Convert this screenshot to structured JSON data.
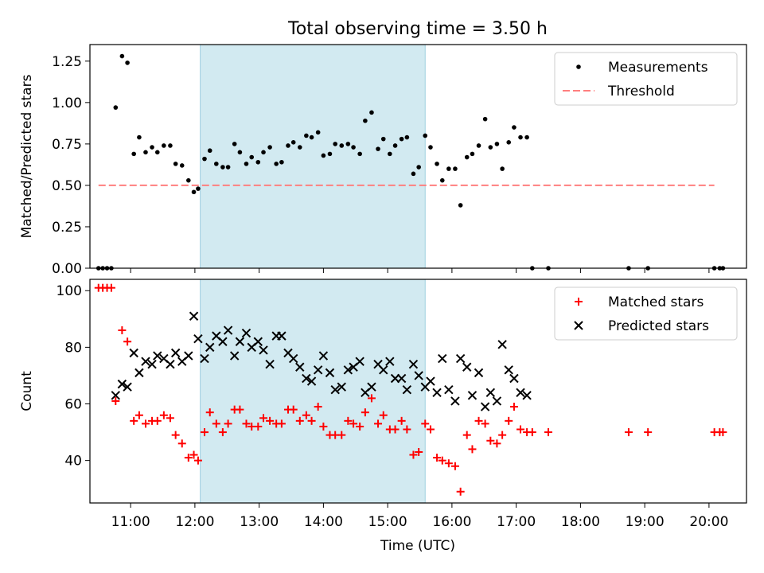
{
  "title": "Total observing time = 3.50 h",
  "colors": {
    "measurement": "#000000",
    "threshold": "#ff7f7f",
    "matched": "#ff0000",
    "predicted": "#000000",
    "span": "#add8e6"
  },
  "chart_data": [
    {
      "type": "scatter",
      "ylabel": "Matched/Predicted stars",
      "xlim": [
        "10:22",
        "20:35"
      ],
      "ylim": [
        0,
        1.35
      ],
      "yticks": [
        "0.00",
        "0.25",
        "0.50",
        "0.75",
        "1.00",
        "1.25"
      ],
      "highlight_span": [
        "12:05",
        "15:35"
      ],
      "legend": {
        "position": "upper-right",
        "entries": [
          "Measurements",
          "Threshold"
        ]
      },
      "threshold": {
        "name": "Threshold",
        "value": 0.5,
        "x_range": [
          "10:30",
          "20:05"
        ]
      },
      "series": [
        {
          "name": "Measurements",
          "marker": "dot",
          "points": [
            [
              "10:30",
              0
            ],
            [
              "10:34",
              0
            ],
            [
              "10:38",
              0
            ],
            [
              "10:42",
              0
            ],
            [
              "10:46",
              0.97
            ],
            [
              "10:52",
              1.28
            ],
            [
              "10:57",
              1.24
            ],
            [
              "11:03",
              0.69
            ],
            [
              "11:08",
              0.79
            ],
            [
              "11:14",
              0.7
            ],
            [
              "11:20",
              0.73
            ],
            [
              "11:25",
              0.7
            ],
            [
              "11:31",
              0.74
            ],
            [
              "11:37",
              0.74
            ],
            [
              "11:42",
              0.63
            ],
            [
              "11:48",
              0.62
            ],
            [
              "11:54",
              0.53
            ],
            [
              "11:59",
              0.46
            ],
            [
              "12:03",
              0.48
            ],
            [
              "12:09",
              0.66
            ],
            [
              "12:14",
              0.71
            ],
            [
              "12:20",
              0.63
            ],
            [
              "12:26",
              0.61
            ],
            [
              "12:31",
              0.61
            ],
            [
              "12:37",
              0.75
            ],
            [
              "12:42",
              0.7
            ],
            [
              "12:48",
              0.63
            ],
            [
              "12:53",
              0.67
            ],
            [
              "12:59",
              0.64
            ],
            [
              "13:04",
              0.7
            ],
            [
              "13:10",
              0.73
            ],
            [
              "13:16",
              0.63
            ],
            [
              "13:21",
              0.64
            ],
            [
              "13:27",
              0.74
            ],
            [
              "13:32",
              0.76
            ],
            [
              "13:38",
              0.73
            ],
            [
              "13:44",
              0.8
            ],
            [
              "13:49",
              0.79
            ],
            [
              "13:55",
              0.82
            ],
            [
              "14:00",
              0.68
            ],
            [
              "14:06",
              0.69
            ],
            [
              "14:11",
              0.75
            ],
            [
              "14:17",
              0.74
            ],
            [
              "14:23",
              0.75
            ],
            [
              "14:28",
              0.73
            ],
            [
              "14:34",
              0.69
            ],
            [
              "14:39",
              0.89
            ],
            [
              "14:45",
              0.94
            ],
            [
              "14:51",
              0.72
            ],
            [
              "14:56",
              0.78
            ],
            [
              "15:02",
              0.69
            ],
            [
              "15:07",
              0.74
            ],
            [
              "15:13",
              0.78
            ],
            [
              "15:18",
              0.79
            ],
            [
              "15:24",
              0.57
            ],
            [
              "15:29",
              0.61
            ],
            [
              "15:35",
              0.8
            ],
            [
              "15:40",
              0.73
            ],
            [
              "15:46",
              0.63
            ],
            [
              "15:51",
              0.53
            ],
            [
              "15:57",
              0.6
            ],
            [
              "16:03",
              0.6
            ],
            [
              "16:08",
              0.38
            ],
            [
              "16:14",
              0.67
            ],
            [
              "16:19",
              0.69
            ],
            [
              "16:25",
              0.74
            ],
            [
              "16:31",
              0.9
            ],
            [
              "16:36",
              0.73
            ],
            [
              "16:42",
              0.75
            ],
            [
              "16:47",
              0.6
            ],
            [
              "16:53",
              0.76
            ],
            [
              "16:58",
              0.85
            ],
            [
              "17:04",
              0.79
            ],
            [
              "17:10",
              0.79
            ],
            [
              "17:15",
              0
            ],
            [
              "17:30",
              0
            ],
            [
              "18:45",
              0
            ],
            [
              "19:03",
              0
            ],
            [
              "20:05",
              0
            ],
            [
              "20:10",
              0
            ],
            [
              "20:13",
              0
            ]
          ]
        }
      ]
    },
    {
      "type": "scatter",
      "ylabel": "Count",
      "xlabel": "Time (UTC)",
      "xlim": [
        "10:22",
        "20:35"
      ],
      "ylim": [
        25,
        104
      ],
      "yticks": [
        "40",
        "60",
        "80",
        "100"
      ],
      "xticks": [
        "11:00",
        "12:00",
        "13:00",
        "14:00",
        "15:00",
        "16:00",
        "17:00",
        "18:00",
        "19:00",
        "20:00"
      ],
      "highlight_span": [
        "12:05",
        "15:35"
      ],
      "legend": {
        "position": "upper-right",
        "entries": [
          "Matched stars",
          "Predicted stars"
        ]
      },
      "series": [
        {
          "name": "Matched stars",
          "marker": "plus",
          "points": [
            [
              "10:30",
              101
            ],
            [
              "10:34",
              101
            ],
            [
              "10:38",
              101
            ],
            [
              "10:42",
              101
            ],
            [
              "10:46",
              61
            ],
            [
              "10:52",
              86
            ],
            [
              "10:57",
              82
            ],
            [
              "11:03",
              54
            ],
            [
              "11:08",
              56
            ],
            [
              "11:14",
              53
            ],
            [
              "11:20",
              54
            ],
            [
              "11:25",
              54
            ],
            [
              "11:31",
              56
            ],
            [
              "11:37",
              55
            ],
            [
              "11:42",
              49
            ],
            [
              "11:48",
              46
            ],
            [
              "11:54",
              41
            ],
            [
              "11:59",
              42
            ],
            [
              "12:03",
              40
            ],
            [
              "12:09",
              50
            ],
            [
              "12:14",
              57
            ],
            [
              "12:20",
              53
            ],
            [
              "12:26",
              50
            ],
            [
              "12:31",
              53
            ],
            [
              "12:37",
              58
            ],
            [
              "12:42",
              58
            ],
            [
              "12:48",
              53
            ],
            [
              "12:53",
              52
            ],
            [
              "12:59",
              52
            ],
            [
              "13:04",
              55
            ],
            [
              "13:10",
              54
            ],
            [
              "13:16",
              53
            ],
            [
              "13:21",
              53
            ],
            [
              "13:27",
              58
            ],
            [
              "13:32",
              58
            ],
            [
              "13:38",
              54
            ],
            [
              "13:44",
              56
            ],
            [
              "13:49",
              54
            ],
            [
              "13:55",
              59
            ],
            [
              "14:00",
              52
            ],
            [
              "14:06",
              49
            ],
            [
              "14:11",
              49
            ],
            [
              "14:17",
              49
            ],
            [
              "14:23",
              54
            ],
            [
              "14:28",
              53
            ],
            [
              "14:34",
              52
            ],
            [
              "14:39",
              57
            ],
            [
              "14:45",
              62
            ],
            [
              "14:51",
              53
            ],
            [
              "14:56",
              56
            ],
            [
              "15:02",
              51
            ],
            [
              "15:07",
              51
            ],
            [
              "15:13",
              54
            ],
            [
              "15:18",
              51
            ],
            [
              "15:24",
              42
            ],
            [
              "15:29",
              43
            ],
            [
              "15:35",
              53
            ],
            [
              "15:40",
              51
            ],
            [
              "15:46",
              41
            ],
            [
              "15:51",
              40
            ],
            [
              "15:57",
              39
            ],
            [
              "16:03",
              38
            ],
            [
              "16:08",
              29
            ],
            [
              "16:14",
              49
            ],
            [
              "16:19",
              44
            ],
            [
              "16:25",
              54
            ],
            [
              "16:31",
              53
            ],
            [
              "16:36",
              47
            ],
            [
              "16:42",
              46
            ],
            [
              "16:47",
              49
            ],
            [
              "16:53",
              54
            ],
            [
              "16:58",
              59
            ],
            [
              "17:04",
              51
            ],
            [
              "17:10",
              50
            ],
            [
              "17:15",
              50
            ],
            [
              "17:30",
              50
            ],
            [
              "18:45",
              50
            ],
            [
              "19:03",
              50
            ],
            [
              "20:05",
              50
            ],
            [
              "20:10",
              50
            ],
            [
              "20:13",
              50
            ]
          ]
        },
        {
          "name": "Predicted stars",
          "marker": "x",
          "points": [
            [
              "10:46",
              63
            ],
            [
              "10:52",
              67
            ],
            [
              "10:57",
              66
            ],
            [
              "11:03",
              78
            ],
            [
              "11:08",
              71
            ],
            [
              "11:14",
              75
            ],
            [
              "11:20",
              74
            ],
            [
              "11:25",
              77
            ],
            [
              "11:31",
              76
            ],
            [
              "11:37",
              74
            ],
            [
              "11:42",
              78
            ],
            [
              "11:48",
              75
            ],
            [
              "11:54",
              77
            ],
            [
              "11:59",
              91
            ],
            [
              "12:03",
              83
            ],
            [
              "12:09",
              76
            ],
            [
              "12:14",
              80
            ],
            [
              "12:20",
              84
            ],
            [
              "12:26",
              82
            ],
            [
              "12:31",
              86
            ],
            [
              "12:37",
              77
            ],
            [
              "12:42",
              82
            ],
            [
              "12:48",
              85
            ],
            [
              "12:53",
              80
            ],
            [
              "12:59",
              82
            ],
            [
              "13:04",
              79
            ],
            [
              "13:10",
              74
            ],
            [
              "13:16",
              84
            ],
            [
              "13:21",
              84
            ],
            [
              "13:27",
              78
            ],
            [
              "13:32",
              76
            ],
            [
              "13:38",
              73
            ],
            [
              "13:44",
              69
            ],
            [
              "13:49",
              68
            ],
            [
              "13:55",
              72
            ],
            [
              "14:00",
              77
            ],
            [
              "14:06",
              71
            ],
            [
              "14:11",
              65
            ],
            [
              "14:17",
              66
            ],
            [
              "14:23",
              72
            ],
            [
              "14:28",
              73
            ],
            [
              "14:34",
              75
            ],
            [
              "14:39",
              64
            ],
            [
              "14:45",
              66
            ],
            [
              "14:51",
              74
            ],
            [
              "14:56",
              72
            ],
            [
              "15:02",
              75
            ],
            [
              "15:07",
              69
            ],
            [
              "15:13",
              69
            ],
            [
              "15:18",
              65
            ],
            [
              "15:24",
              74
            ],
            [
              "15:29",
              70
            ],
            [
              "15:35",
              66
            ],
            [
              "15:40",
              68
            ],
            [
              "15:46",
              64
            ],
            [
              "15:51",
              76
            ],
            [
              "15:57",
              65
            ],
            [
              "16:03",
              61
            ],
            [
              "16:08",
              76
            ],
            [
              "16:14",
              73
            ],
            [
              "16:19",
              63
            ],
            [
              "16:25",
              71
            ],
            [
              "16:31",
              59
            ],
            [
              "16:36",
              64
            ],
            [
              "16:42",
              61
            ],
            [
              "16:47",
              81
            ],
            [
              "16:53",
              72
            ],
            [
              "16:58",
              69
            ],
            [
              "17:04",
              64
            ],
            [
              "17:10",
              63
            ]
          ]
        }
      ]
    }
  ]
}
